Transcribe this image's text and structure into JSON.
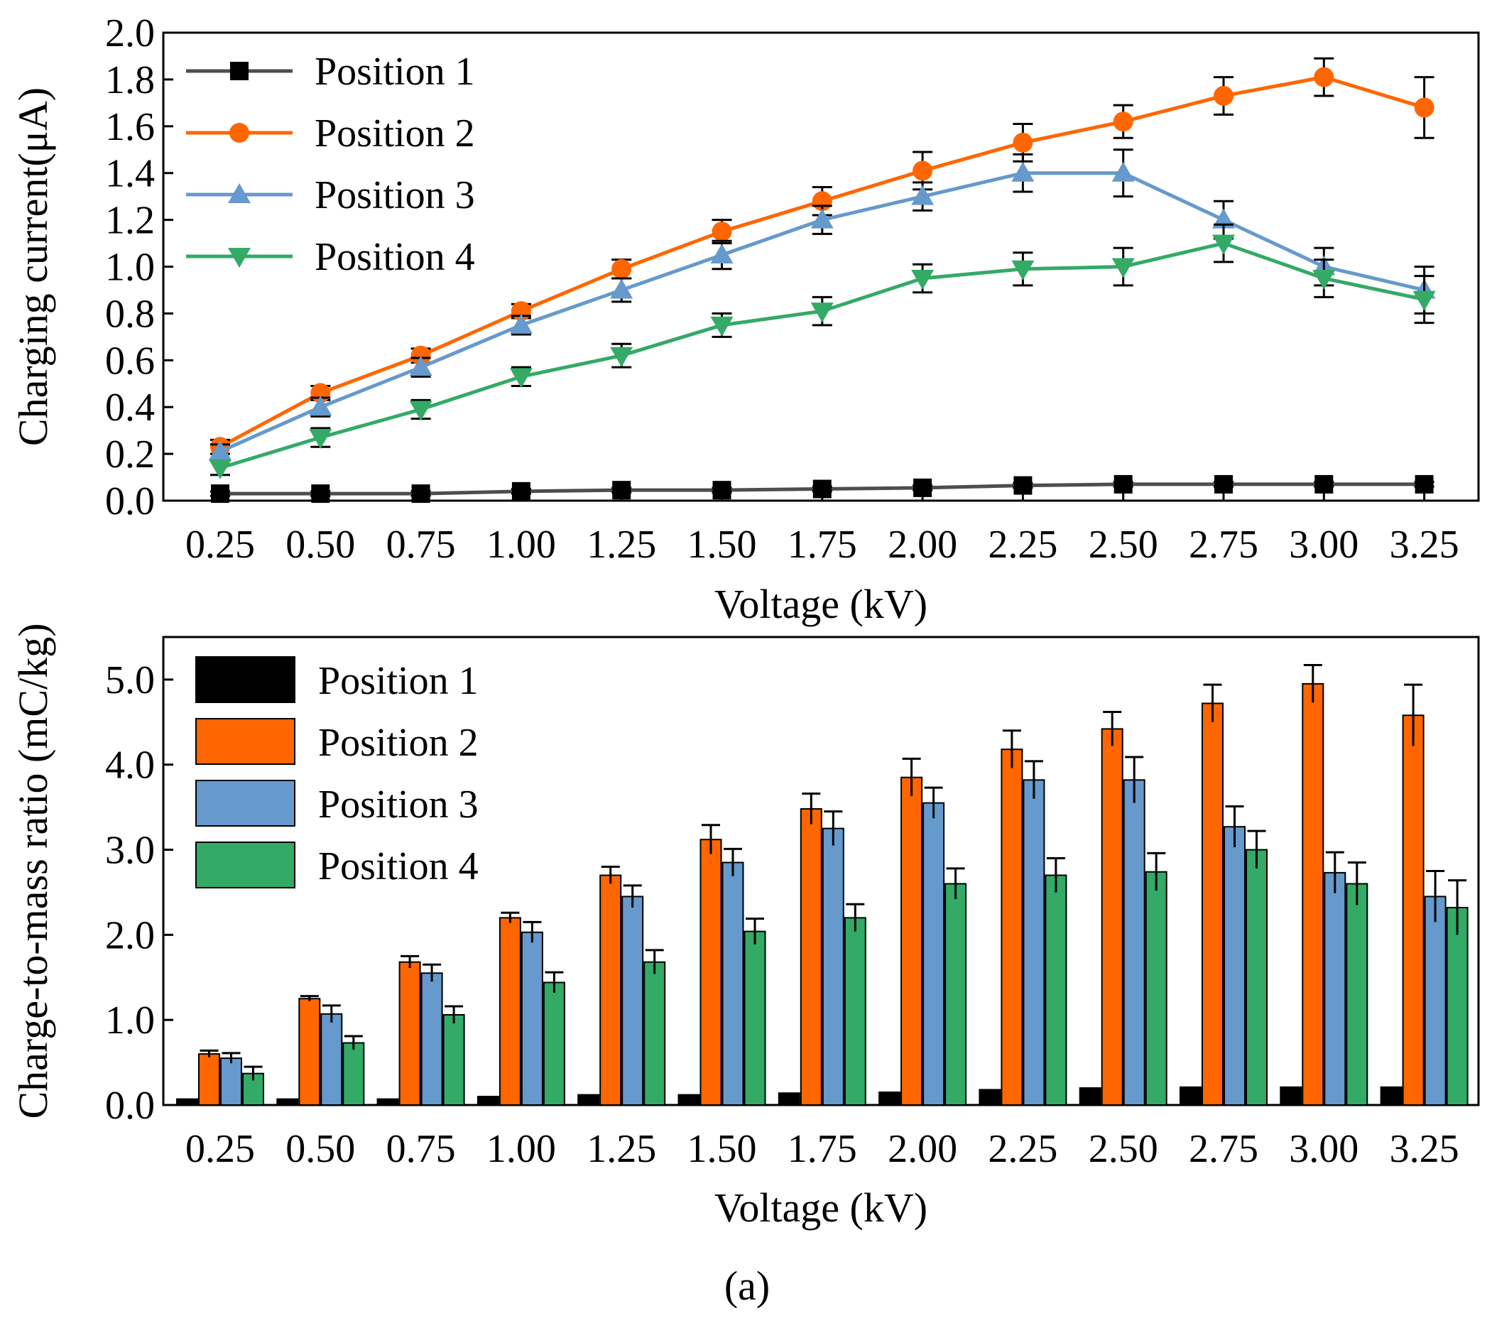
{
  "panel_label": "(a)",
  "colors": {
    "position_1": "#000000",
    "position_1_line": "#4d4d4d",
    "position_2": "#ff6600",
    "position_3": "#6699cc",
    "position_4": "#33aa66"
  },
  "chart_data": [
    {
      "type": "line",
      "xlabel": "Voltage (kV)",
      "ylabel": "Charging current(μA)",
      "categories": [
        "0.25",
        "0.50",
        "0.75",
        "1.00",
        "1.25",
        "1.50",
        "1.75",
        "2.00",
        "2.25",
        "2.50",
        "2.75",
        "3.00",
        "3.25"
      ],
      "x": [
        0.25,
        0.5,
        0.75,
        1.0,
        1.25,
        1.5,
        1.75,
        2.0,
        2.25,
        2.5,
        2.75,
        3.0,
        3.25
      ],
      "ylim": [
        0,
        2.0
      ],
      "yticks": [
        "0.0",
        "0.2",
        "0.4",
        "0.6",
        "0.8",
        "1.0",
        "1.2",
        "1.4",
        "1.6",
        "1.8",
        "2.0"
      ],
      "legend_position": "top-left",
      "series": [
        {
          "name": "Position 1",
          "marker": "square",
          "values": [
            0.03,
            0.03,
            0.03,
            0.04,
            0.045,
            0.045,
            0.05,
            0.055,
            0.065,
            0.07,
            0.07,
            0.07,
            0.07
          ],
          "errors": [
            0.01,
            0.01,
            0.01,
            0.01,
            0.01,
            0.01,
            0.01,
            0.01,
            0.01,
            0.01,
            0.01,
            0.01,
            0.01
          ]
        },
        {
          "name": "Position 2",
          "marker": "circle",
          "values": [
            0.23,
            0.46,
            0.62,
            0.81,
            0.99,
            1.15,
            1.28,
            1.41,
            1.53,
            1.62,
            1.73,
            1.81,
            1.68
          ],
          "errors": [
            0.03,
            0.03,
            0.03,
            0.03,
            0.04,
            0.05,
            0.06,
            0.08,
            0.08,
            0.07,
            0.08,
            0.08,
            0.13
          ]
        },
        {
          "name": "Position 3",
          "marker": "triangle-up",
          "values": [
            0.21,
            0.4,
            0.57,
            0.75,
            0.9,
            1.05,
            1.2,
            1.3,
            1.4,
            1.4,
            1.2,
            1.0,
            0.9
          ],
          "errors": [
            0.03,
            0.04,
            0.04,
            0.04,
            0.05,
            0.06,
            0.06,
            0.06,
            0.08,
            0.1,
            0.08,
            0.08,
            0.1
          ]
        },
        {
          "name": "Position 4",
          "marker": "triangle-down",
          "values": [
            0.14,
            0.27,
            0.39,
            0.53,
            0.62,
            0.75,
            0.81,
            0.95,
            0.99,
            1.0,
            1.1,
            0.95,
            0.86
          ],
          "errors": [
            0.03,
            0.04,
            0.04,
            0.04,
            0.05,
            0.05,
            0.06,
            0.06,
            0.07,
            0.08,
            0.08,
            0.08,
            0.1
          ]
        }
      ]
    },
    {
      "type": "bar",
      "xlabel": "Voltage (kV)",
      "ylabel": "Charge-to-mass ratio (mC/kg)",
      "categories": [
        "0.25",
        "0.50",
        "0.75",
        "1.00",
        "1.25",
        "1.50",
        "1.75",
        "2.00",
        "2.25",
        "2.50",
        "2.75",
        "3.00",
        "3.25"
      ],
      "ylim": [
        0,
        5.5
      ],
      "yticks": [
        "0.0",
        "1.0",
        "2.0",
        "3.0",
        "4.0",
        "5.0"
      ],
      "legend_position": "top-left",
      "series": [
        {
          "name": "Position 1",
          "values": [
            0.07,
            0.07,
            0.07,
            0.1,
            0.12,
            0.12,
            0.14,
            0.15,
            0.18,
            0.2,
            0.21,
            0.21,
            0.21
          ]
        },
        {
          "name": "Position 2",
          "values": [
            0.6,
            1.25,
            1.68,
            2.2,
            2.7,
            3.12,
            3.48,
            3.85,
            4.18,
            4.42,
            4.72,
            4.95,
            4.58
          ],
          "errors": [
            0.04,
            0.03,
            0.07,
            0.06,
            0.1,
            0.17,
            0.18,
            0.22,
            0.22,
            0.2,
            0.22,
            0.22,
            0.36
          ]
        },
        {
          "name": "Position 3",
          "values": [
            0.55,
            1.07,
            1.55,
            2.03,
            2.45,
            2.85,
            3.25,
            3.55,
            3.82,
            3.82,
            3.27,
            2.73,
            2.45
          ],
          "errors": [
            0.06,
            0.1,
            0.1,
            0.12,
            0.13,
            0.16,
            0.2,
            0.18,
            0.22,
            0.27,
            0.24,
            0.24,
            0.3
          ]
        },
        {
          "name": "Position 4",
          "values": [
            0.37,
            0.73,
            1.06,
            1.44,
            1.68,
            2.04,
            2.2,
            2.6,
            2.7,
            2.74,
            3.0,
            2.6,
            2.32
          ],
          "errors": [
            0.08,
            0.08,
            0.1,
            0.12,
            0.14,
            0.15,
            0.16,
            0.18,
            0.2,
            0.22,
            0.22,
            0.25,
            0.32
          ]
        }
      ]
    }
  ]
}
